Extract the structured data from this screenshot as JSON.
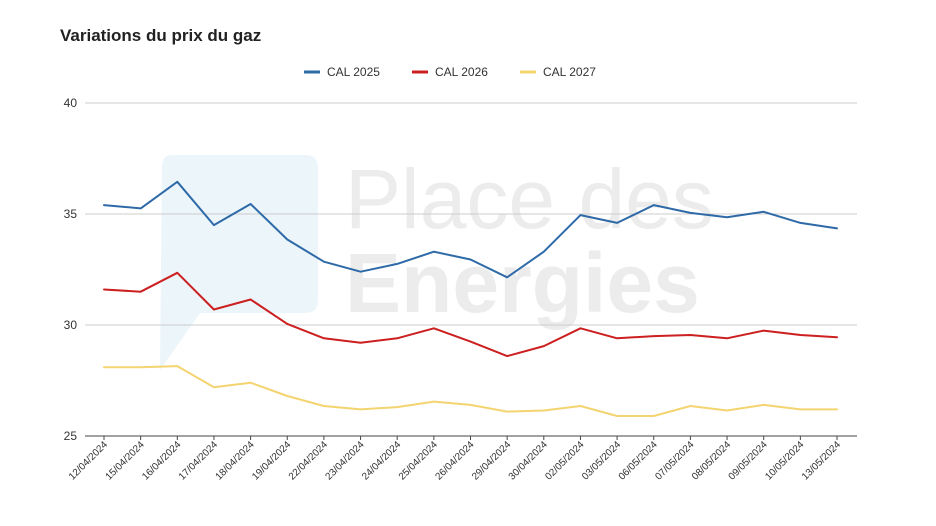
{
  "chart_data": {
    "type": "line",
    "title": "Variations du prix du gaz",
    "xlabel": "",
    "ylabel": "",
    "ylim": [
      25,
      40
    ],
    "yticks": [
      25,
      30,
      35,
      40
    ],
    "grid": true,
    "legend_position": "top-center",
    "categories": [
      "12/04/2024",
      "15/04/2024",
      "16/04/2024",
      "17/04/2024",
      "18/04/2024",
      "19/04/2024",
      "22/04/2024",
      "23/04/2024",
      "24/04/2024",
      "25/04/2024",
      "26/04/2024",
      "29/04/2024",
      "30/04/2024",
      "02/05/2024",
      "03/05/2024",
      "06/05/2024",
      "07/05/2024",
      "08/05/2024",
      "09/05/2024",
      "10/05/2024",
      "13/05/2024"
    ],
    "series": [
      {
        "name": "CAL 2025",
        "color": "#2e6aa8",
        "values": [
          35.4,
          35.25,
          36.45,
          34.5,
          35.45,
          33.85,
          32.85,
          32.4,
          32.75,
          33.3,
          32.95,
          32.15,
          33.3,
          34.95,
          34.6,
          35.4,
          35.05,
          34.85,
          35.1,
          34.6,
          34.35
        ]
      },
      {
        "name": "CAL 2026",
        "color": "#cc1f1f",
        "values": [
          31.6,
          31.5,
          32.35,
          30.7,
          31.15,
          30.05,
          29.4,
          29.2,
          29.4,
          29.85,
          29.25,
          28.6,
          29.05,
          29.85,
          29.4,
          29.5,
          29.55,
          29.4,
          29.75,
          29.55,
          29.45
        ]
      },
      {
        "name": "CAL 2027",
        "color": "#f4d470",
        "values": [
          28.1,
          28.1,
          28.15,
          27.2,
          27.4,
          26.8,
          26.35,
          26.2,
          26.3,
          26.55,
          26.4,
          26.1,
          26.15,
          26.35,
          25.9,
          25.9,
          26.35,
          26.15,
          26.4,
          26.2,
          26.2
        ]
      }
    ]
  },
  "watermark": {
    "line1": "Place des",
    "line2": "Energies",
    "color": "#cfeaf3"
  }
}
